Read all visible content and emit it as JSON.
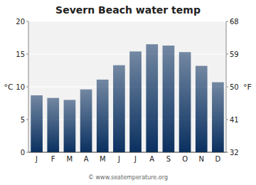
{
  "chart_data": {
    "type": "bar",
    "title": "Severn Beach water temp",
    "categories": [
      "J",
      "F",
      "M",
      "A",
      "M",
      "J",
      "J",
      "A",
      "S",
      "O",
      "N",
      "D"
    ],
    "values": [
      8.7,
      8.3,
      8.0,
      9.6,
      11.1,
      13.3,
      15.4,
      16.5,
      16.3,
      15.3,
      13.2,
      10.7
    ],
    "color": "#0a3060",
    "ylim": [
      0,
      20
    ],
    "yticks": [
      0,
      5,
      10,
      15,
      20
    ],
    "y2lim": [
      32,
      68
    ],
    "y2ticks": [
      32,
      41,
      50,
      59,
      68
    ],
    "ylabel": "°C",
    "y2label": "°F",
    "annotations": [
      "© www.seatemperature.org"
    ],
    "grid": true
  }
}
